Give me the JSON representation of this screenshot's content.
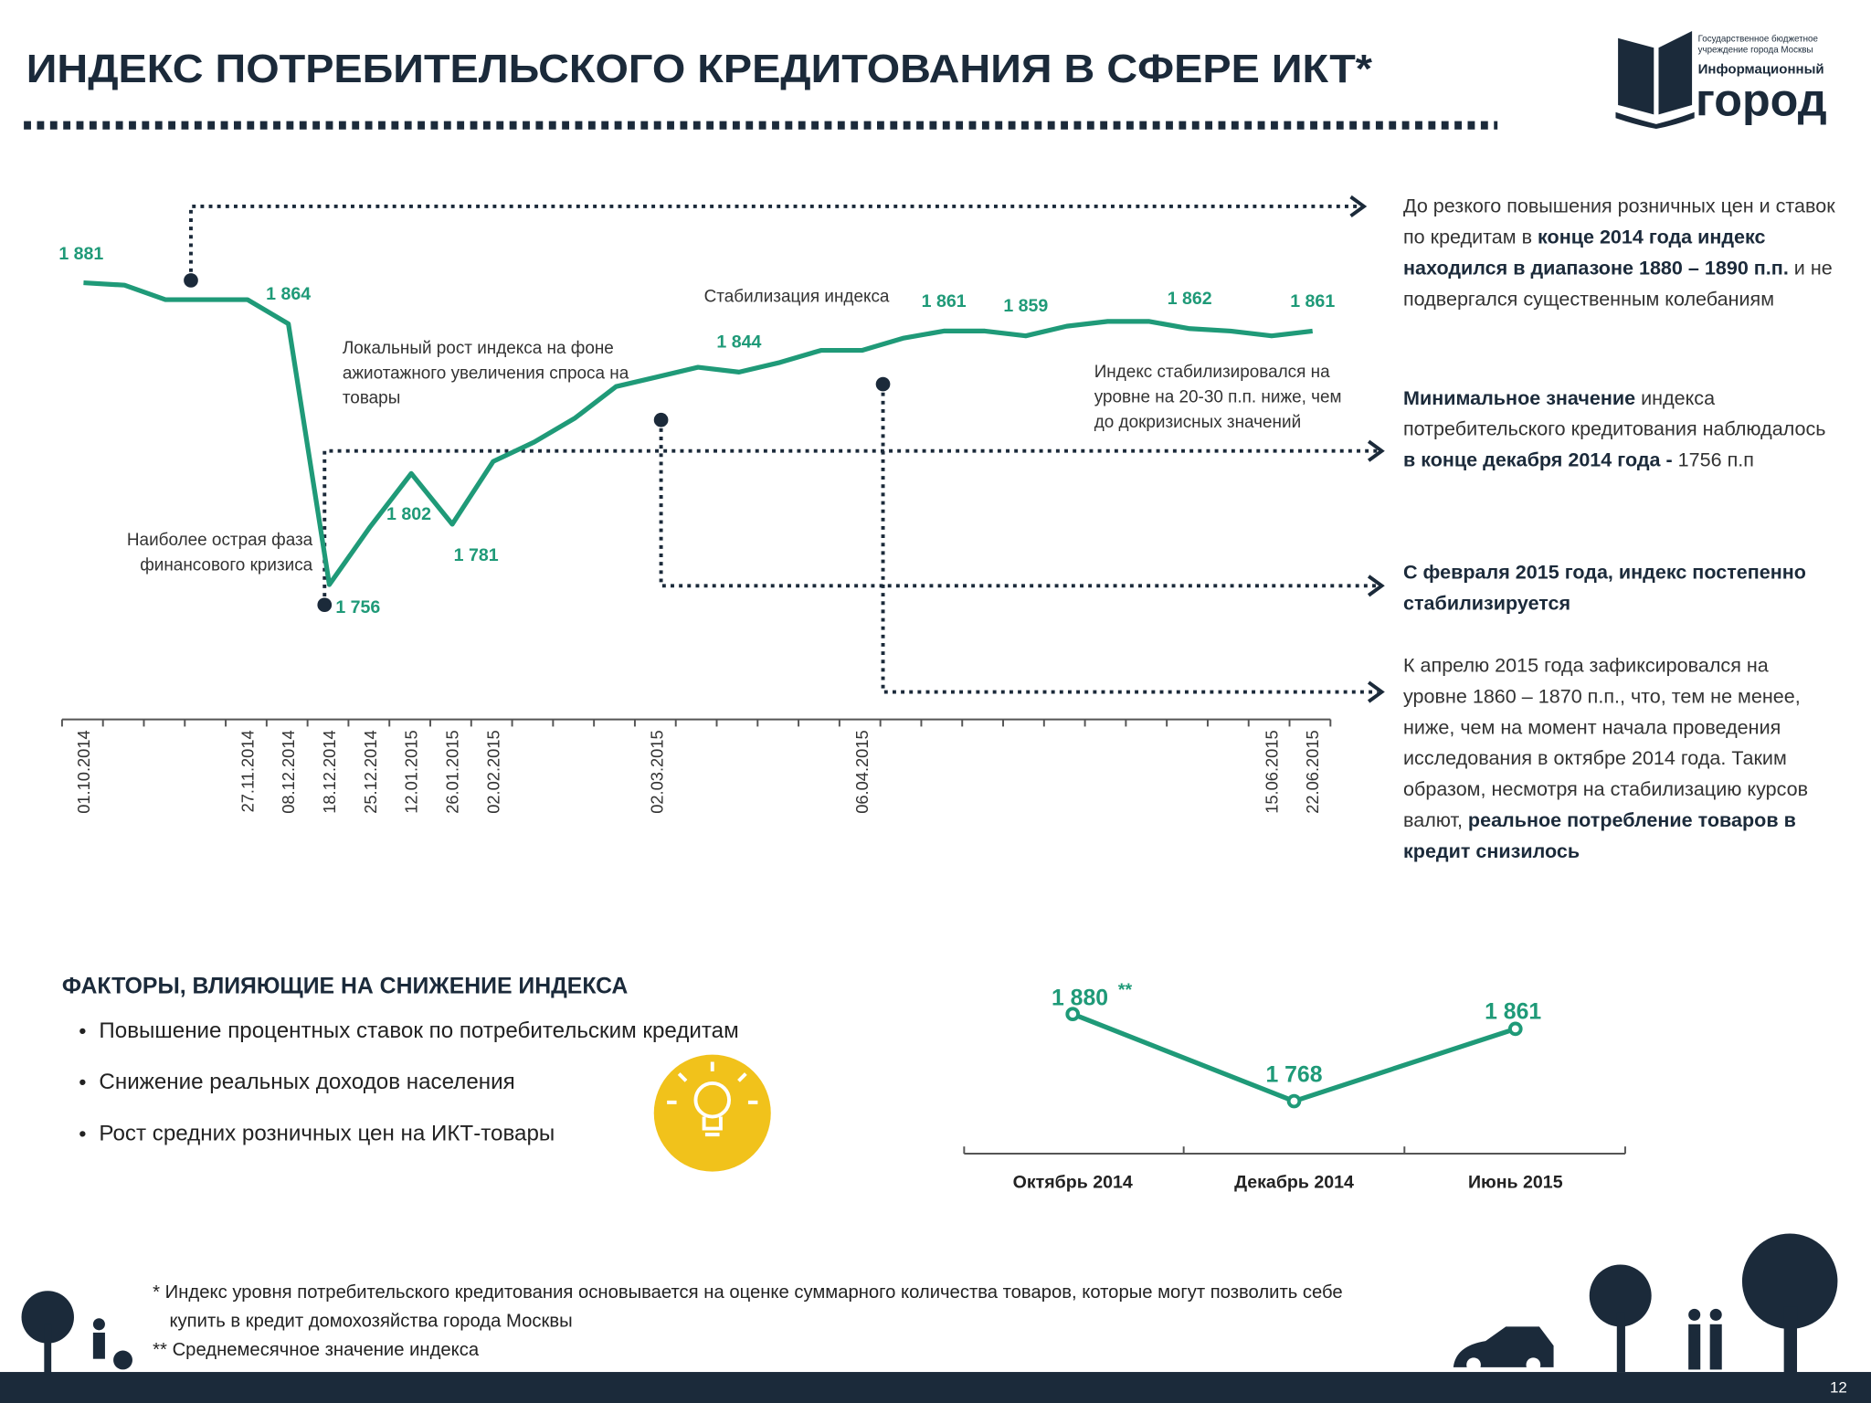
{
  "header": {
    "title": "ИНДЕКС ПОТРЕБИТЕЛЬСКОГО КРЕДИТОВАНИЯ В СФЕРЕ ИКТ*",
    "logo": {
      "org": [
        "Государственное бюджетное",
        "учреждение города Москвы"
      ],
      "line1": "Информационный",
      "line2": "город"
    }
  },
  "chart_data": [
    {
      "type": "line",
      "color": "#1f9a78",
      "categories": [
        "01.10.2014",
        null,
        null,
        null,
        "27.11.2014",
        "08.12.2014",
        "18.12.2014",
        "25.12.2014",
        "12.01.2015",
        "26.01.2015",
        "02.02.2015",
        null,
        null,
        null,
        "02.03.2015",
        null,
        null,
        null,
        null,
        "06.04.2015",
        null,
        null,
        null,
        null,
        null,
        null,
        null,
        null,
        null,
        "15.06.2015",
        "22.06.2015"
      ],
      "values": [
        1881,
        1880,
        1874,
        1874,
        1874,
        1864,
        1756,
        1780,
        1802,
        1781,
        1807,
        1815,
        1825,
        1838,
        1842,
        1846,
        1844,
        1848,
        1853,
        1853,
        1858,
        1861,
        1861,
        1859,
        1863,
        1865,
        1865,
        1862,
        1861,
        1859,
        1861
      ],
      "value_labels": [
        "1 881",
        null,
        null,
        null,
        null,
        "1 864",
        "1 756",
        null,
        "1 802",
        "1 781",
        null,
        null,
        null,
        null,
        null,
        null,
        "1 844",
        null,
        null,
        null,
        null,
        "1 861",
        null,
        "1 859",
        null,
        null,
        null,
        "1 862",
        null,
        null,
        "1 861"
      ],
      "annotations": [
        {
          "lines": [
            "Наиболее острая фаза",
            "финансового кризиса"
          ]
        },
        {
          "lines": [
            "Локальный рост индекса на фоне",
            "ажиотажного увеличения спроса на",
            "товары"
          ]
        },
        {
          "lines": [
            "Стабилизация индекса"
          ]
        },
        {
          "lines": [
            "Индекс стабилизировался на",
            "уровне на 20-30 п.п. ниже, чем",
            "до докризисных значений"
          ]
        }
      ]
    },
    {
      "type": "line",
      "color": "#1f9a78",
      "categories": [
        "Октябрь 2014",
        "Декабрь 2014",
        "Июнь 2015"
      ],
      "values": [
        1880,
        1768,
        1861
      ],
      "value_labels": [
        "1 880",
        "1 768",
        "1 861"
      ],
      "note": "**"
    }
  ],
  "notes": [
    [
      {
        "text": "До резкого повышения розничных цен и ставок по кредитам в ",
        "bold": false
      },
      {
        "text": "конце 2014 года индекс находился в диапазоне 1880 – 1890 п.п.",
        "bold": true
      },
      {
        "text": " и не подвергался существенным колебаниям",
        "bold": false
      }
    ],
    [
      {
        "text": "Минимальное значение",
        "bold": true
      },
      {
        "text": " индекса потребительского кредитования наблюдалось ",
        "bold": false
      },
      {
        "text": "в конце декабря 2014 года -",
        "bold": true
      },
      {
        "text": " 1756 п.п",
        "bold": false
      }
    ],
    [
      {
        "text": "С февраля 2015 года, индекс постепенно стабилизируется",
        "bold": true
      }
    ],
    [
      {
        "text": "К апрелю 2015 года зафиксировался на уровне 1860 – 1870 п.п., что, тем не менее, ниже, чем на момент начала проведения исследования в октябре 2014 года. Таким образом, несмотря на стабилизацию курсов валют, ",
        "bold": false
      },
      {
        "text": "реальное потребление товаров в кредит снизилось",
        "bold": true
      }
    ]
  ],
  "factors": {
    "title": "ФАКТОРЫ, ВЛИЯЮЩИЕ НА СНИЖЕНИЕ ИНДЕКСА",
    "items": [
      "Повышение процентных ставок по потребительским кредитам",
      "Снижение реальных доходов населения",
      "Рост средних розничных цен на ИКТ-товары"
    ]
  },
  "footnotes": [
    "*   Индекс уровня потребительского кредитования основывается на оценке суммарного количества товаров, которые могут позволить себе купить в кредит домохозяйства города Москвы",
    "** Среднемесячное значение индекса"
  ],
  "page_number": 12
}
